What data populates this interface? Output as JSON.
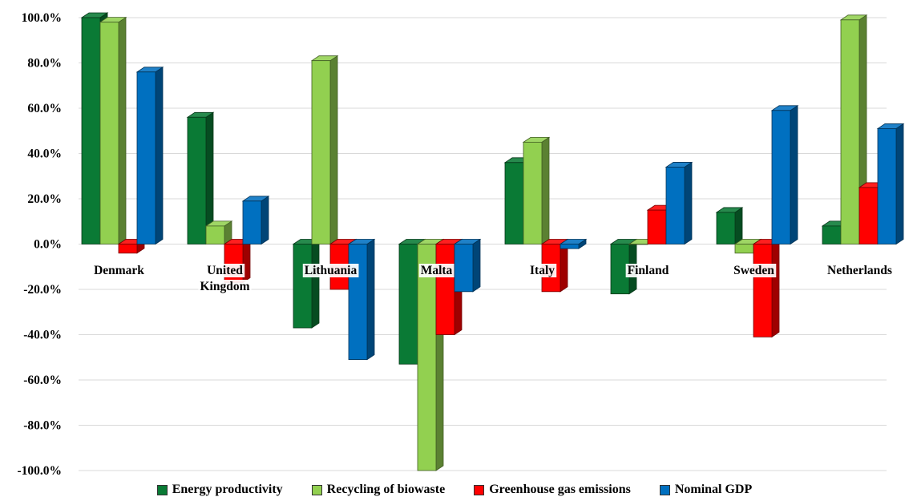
{
  "chart_data": {
    "type": "bar",
    "style": "3d-clustered-column",
    "categories": [
      "Denmark",
      "United Kingdom",
      "Lithuania",
      "Malta",
      "Italy",
      "Finland",
      "Sweden",
      "Netherlands"
    ],
    "category_label_lines": [
      [
        "Denmark"
      ],
      [
        "United",
        "Kingdom"
      ],
      [
        "Lithuania"
      ],
      [
        "Malta"
      ],
      [
        "Italy"
      ],
      [
        "Finland"
      ],
      [
        "Sweden"
      ],
      [
        "Netherlands"
      ]
    ],
    "series": [
      {
        "name": "Energy productivity",
        "color": "#0a7a35",
        "values": [
          100.0,
          56.0,
          -37.0,
          -53.0,
          36.0,
          -22.0,
          14.0,
          8.0
        ]
      },
      {
        "name": "Recycling of biowaste",
        "color": "#92d050",
        "values": [
          98.0,
          8.0,
          81.0,
          -100.0,
          45.0,
          0.0,
          -4.0,
          99.0
        ]
      },
      {
        "name": "Greenhouse gas emissions",
        "color": "#ff0000",
        "values": [
          -4.0,
          -17.0,
          -20.0,
          -40.0,
          -21.0,
          15.0,
          -41.0,
          25.0
        ]
      },
      {
        "name": "Nominal GDP",
        "color": "#0070c0",
        "values": [
          76.0,
          19.0,
          -51.0,
          -21.0,
          -2.0,
          34.0,
          59.0,
          51.0
        ]
      }
    ],
    "ylim": [
      -100,
      100
    ],
    "yticks": [
      100,
      80,
      60,
      40,
      20,
      0,
      -20,
      -40,
      -60,
      -80,
      -100
    ],
    "ytick_labels": [
      "100.0%",
      "80.0%",
      "60.0%",
      "40.0%",
      "20.0%",
      "0.0%",
      "-20.0%",
      "-40.0%",
      "-60.0%",
      "-80.0%",
      "-100.0%"
    ],
    "grid": true,
    "legend_position": "bottom",
    "title": "",
    "xlabel": "",
    "ylabel": ""
  }
}
